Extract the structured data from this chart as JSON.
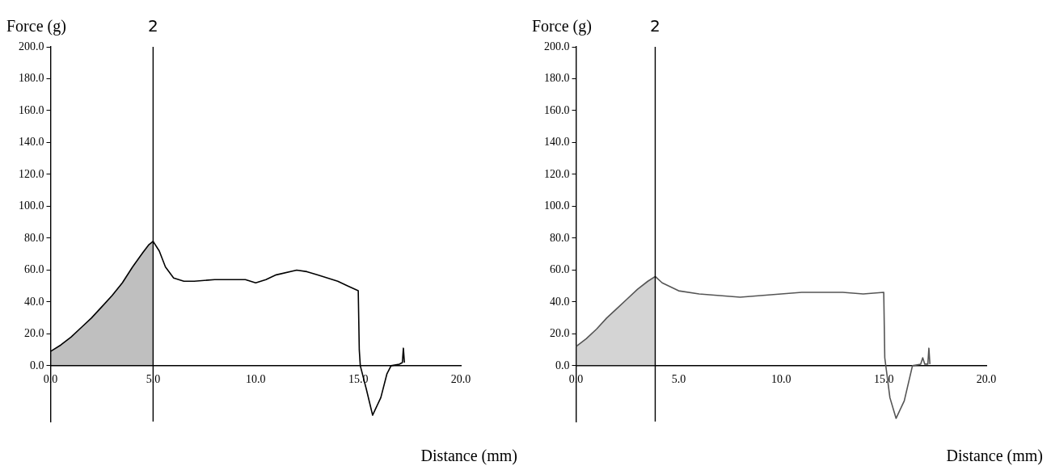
{
  "chart_data": [
    {
      "type": "line",
      "xlabel": "Distance (mm)",
      "ylabel": "Force (g)",
      "marker": "none",
      "grid": false,
      "legend": false,
      "xlim": [
        0,
        20
      ],
      "ylim": [
        -35,
        200
      ],
      "xticks": [
        {
          "value": 0,
          "label": "0.0"
        },
        {
          "value": 5,
          "label": "5.0"
        },
        {
          "value": 10,
          "label": "10.0"
        },
        {
          "value": 15,
          "label": "15.0"
        },
        {
          "value": 20,
          "label": "20.0"
        }
      ],
      "yticks": [
        {
          "value": 0,
          "label": "0.0"
        },
        {
          "value": 20,
          "label": "20.0"
        },
        {
          "value": 40,
          "label": "40.0"
        },
        {
          "value": 60,
          "label": "60.0"
        },
        {
          "value": 80,
          "label": "80.0"
        },
        {
          "value": 100,
          "label": "100.0"
        },
        {
          "value": 120,
          "label": "120.0"
        },
        {
          "value": 140,
          "label": "140.0"
        },
        {
          "value": 160,
          "label": "160.0"
        },
        {
          "value": 180,
          "label": "180.0"
        },
        {
          "value": 200,
          "label": "200.0"
        }
      ],
      "ref_lines": [
        {
          "axis": "x",
          "value": 5,
          "color": "#000000"
        }
      ],
      "annotations": [
        {
          "text": "2",
          "x": 5,
          "y": 200
        }
      ],
      "series": [
        {
          "type": "area",
          "color": "#000000",
          "x": [
            0,
            0.5,
            1,
            1.5,
            2,
            2.5,
            3,
            3.5,
            4,
            4.5,
            4.8,
            5
          ],
          "values": [
            9,
            13,
            18,
            24,
            30,
            37,
            44,
            52,
            62,
            71,
            76,
            78
          ]
        },
        {
          "color": "#000000",
          "x": [
            5,
            5.3,
            5.6,
            6,
            6.5,
            7,
            8,
            9,
            9.5,
            10,
            10.5,
            11,
            12,
            12.5,
            13,
            14,
            14.5,
            15,
            15.05,
            15.1,
            15.4,
            15.7,
            16.1,
            16.4,
            16.6,
            17,
            17.15,
            17.2,
            17.25
          ],
          "values": [
            78,
            72,
            62,
            55,
            53,
            53,
            54,
            54,
            54,
            52,
            54,
            57,
            60,
            59,
            57,
            53,
            50,
            47,
            10,
            0,
            -15,
            -31,
            -20,
            -5,
            0,
            1,
            2,
            11,
            2
          ]
        }
      ]
    },
    {
      "type": "line",
      "xlabel": "Distance (mm)",
      "ylabel": "Force (g)",
      "marker": "none",
      "grid": false,
      "legend": false,
      "xlim": [
        0,
        20
      ],
      "ylim": [
        -35,
        200
      ],
      "xticks": [
        {
          "value": 0,
          "label": "0.0"
        },
        {
          "value": 5,
          "label": "5.0"
        },
        {
          "value": 10,
          "label": "10.0"
        },
        {
          "value": 15,
          "label": "15.0"
        },
        {
          "value": 20,
          "label": "20.0"
        }
      ],
      "yticks": [
        {
          "value": 0,
          "label": "0.0"
        },
        {
          "value": 20,
          "label": "20.0"
        },
        {
          "value": 40,
          "label": "40.0"
        },
        {
          "value": 60,
          "label": "60.0"
        },
        {
          "value": 80,
          "label": "80.0"
        },
        {
          "value": 100,
          "label": "100.0"
        },
        {
          "value": 120,
          "label": "120.0"
        },
        {
          "value": 140,
          "label": "140.0"
        },
        {
          "value": 160,
          "label": "160.0"
        },
        {
          "value": 180,
          "label": "180.0"
        },
        {
          "value": 200,
          "label": "200.0"
        }
      ],
      "ref_lines": [
        {
          "axis": "x",
          "value": 3.86,
          "color": "#000000"
        }
      ],
      "annotations": [
        {
          "text": "2",
          "x": 3.86,
          "y": 200
        }
      ],
      "series": [
        {
          "type": "area",
          "color": "#555555",
          "x": [
            0,
            0.5,
            1,
            1.5,
            2,
            2.5,
            3,
            3.5,
            3.86
          ],
          "values": [
            12,
            17,
            23,
            30,
            36,
            42,
            48,
            53,
            56
          ]
        },
        {
          "color": "#555555",
          "x": [
            3.86,
            4.2,
            5,
            6,
            7,
            8,
            9,
            10,
            11,
            12,
            13,
            14,
            15,
            15.05,
            15.3,
            15.6,
            16,
            16.4,
            16.8,
            16.9,
            17,
            17.15,
            17.2,
            17.25
          ],
          "values": [
            56,
            52,
            47,
            45,
            44,
            43,
            44,
            45,
            46,
            46,
            46,
            45,
            46,
            5,
            -20,
            -33,
            -22,
            0,
            1,
            5,
            1,
            1,
            11,
            1
          ]
        }
      ]
    }
  ]
}
